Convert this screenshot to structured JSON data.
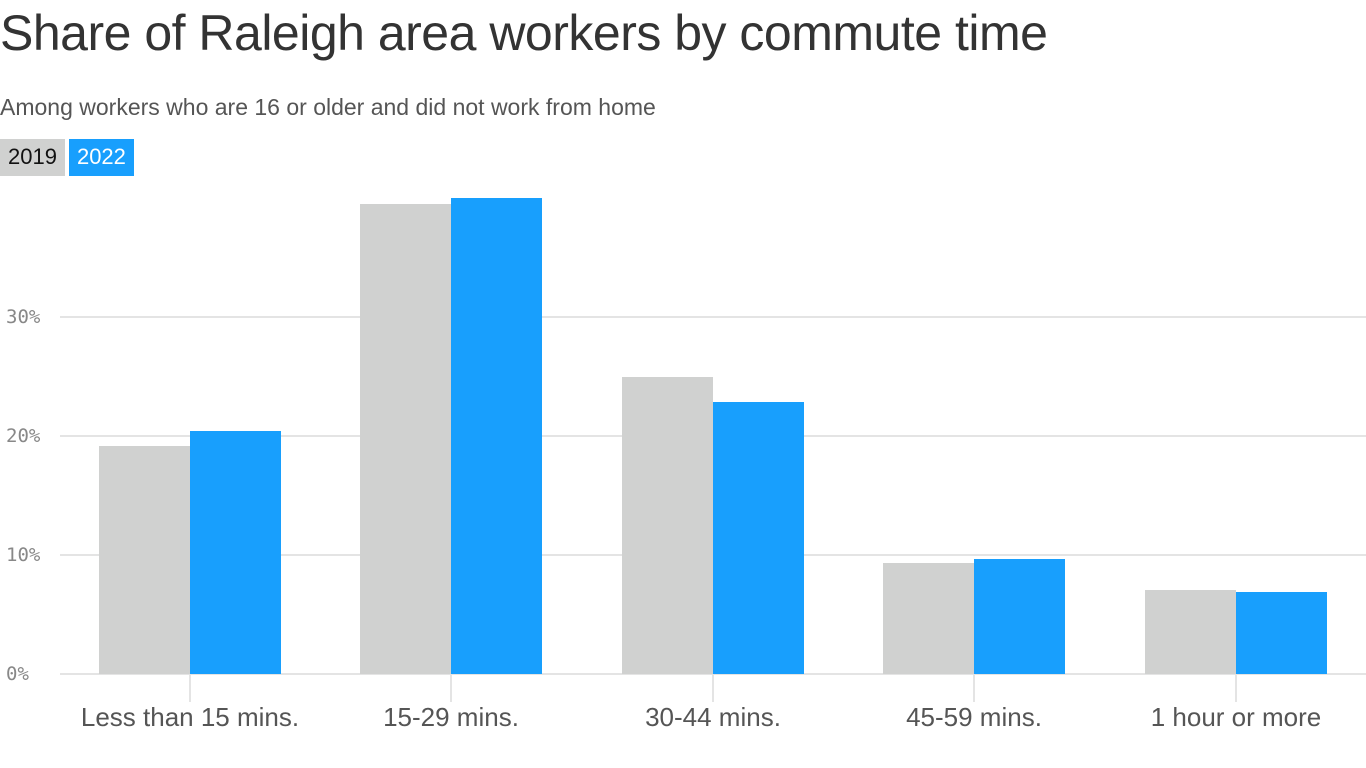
{
  "header": {
    "title": "Share of Raleigh area workers by commute time",
    "subtitle": "Among workers who are 16 or older and did not work from home"
  },
  "legend": {
    "items": [
      {
        "label": "2019",
        "color": "#d0d1d0"
      },
      {
        "label": "2022",
        "color": "#189ffd"
      }
    ]
  },
  "axis": {
    "y_ticks": [
      "0%",
      "10%",
      "20%",
      "30%"
    ],
    "x_labels": [
      "Less than 15 mins.",
      "15-29 mins.",
      "30-44 mins.",
      "45-59 mins.",
      "1 hour or more"
    ]
  },
  "chart_data": {
    "type": "bar",
    "title": "Share of Raleigh area workers by commute time",
    "subtitle": "Among workers who are 16 or older and did not work from home",
    "categories": [
      "Less than 15 mins.",
      "15-29 mins.",
      "30-44 mins.",
      "45-59 mins.",
      "1 hour or more"
    ],
    "series": [
      {
        "name": "2019",
        "color": "#d0d1d0",
        "values": [
          19.2,
          39.5,
          25.0,
          9.3,
          7.1
        ]
      },
      {
        "name": "2022",
        "color": "#189ffd",
        "values": [
          20.4,
          40.0,
          22.9,
          9.7,
          6.9
        ]
      }
    ],
    "xlabel": "",
    "ylabel": "",
    "ylim": [
      0,
      40
    ],
    "y_ticks": [
      0,
      10,
      20,
      30
    ],
    "y_tick_format": "%",
    "grid": true,
    "legend_position": "top-left"
  }
}
